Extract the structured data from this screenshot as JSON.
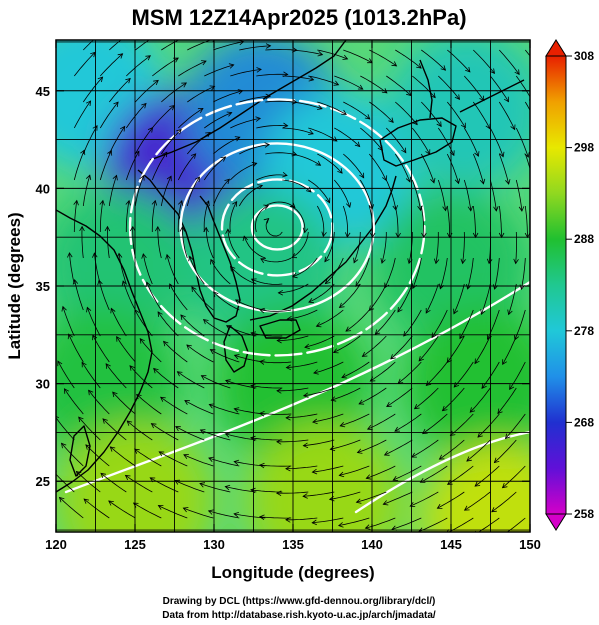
{
  "title": "MSM 12Z14Apr2025 (1013.2hPa)",
  "xlabel": "Longitude (degrees)",
  "ylabel": "Latitude  (degrees)",
  "credits": {
    "line1": "Drawing by DCL (https://www.gfd-dennou.org/library/dcl/)",
    "line2": "Data from http://database.rish.kyoto-u.ac.jp/arch/jmadata/"
  },
  "chart_data": {
    "type": "heatmap",
    "title": "MSM 12Z14Apr2025 (1013.2hPa)",
    "xlabel": "Longitude (degrees)",
    "ylabel": "Latitude  (degrees)",
    "xlim": [
      120,
      150
    ],
    "ylim": [
      22.4,
      47.6
    ],
    "x_ticks": [
      120,
      125,
      130,
      135,
      140,
      145,
      150
    ],
    "y_ticks": [
      25,
      30,
      35,
      40,
      45
    ],
    "grid": true,
    "colorbar": {
      "min": 258,
      "max": 308,
      "ticks": [
        258,
        268,
        278,
        288,
        298,
        308
      ],
      "colors": [
        "#d400c8",
        "#2030d0",
        "#20c8d8",
        "#20c030",
        "#e8e800",
        "#e82000"
      ]
    },
    "temperature_field": [
      {
        "lon": 122,
        "lat": 45,
        "value": 278
      },
      {
        "lon": 128,
        "lat": 41,
        "value": 266
      },
      {
        "lon": 133,
        "lat": 44,
        "value": 274
      },
      {
        "lon": 138,
        "lat": 41,
        "value": 278
      },
      {
        "lon": 146,
        "lat": 44,
        "value": 280
      },
      {
        "lon": 124,
        "lat": 36,
        "value": 284
      },
      {
        "lon": 133,
        "lat": 36,
        "value": 283
      },
      {
        "lon": 145,
        "lat": 36,
        "value": 285
      },
      {
        "lon": 123,
        "lat": 30,
        "value": 287
      },
      {
        "lon": 135,
        "lat": 30,
        "value": 288
      },
      {
        "lon": 147,
        "lat": 30,
        "value": 288
      },
      {
        "lon": 125,
        "lat": 24,
        "value": 294
      },
      {
        "lon": 137,
        "lat": 24,
        "value": 294
      },
      {
        "lon": 148,
        "lat": 23,
        "value": 296
      }
    ],
    "cyclone_center": {
      "lon": 134,
      "lat": 38
    },
    "variables": [
      "temperature (K)",
      "wind streamlines",
      "pressure contours"
    ]
  }
}
